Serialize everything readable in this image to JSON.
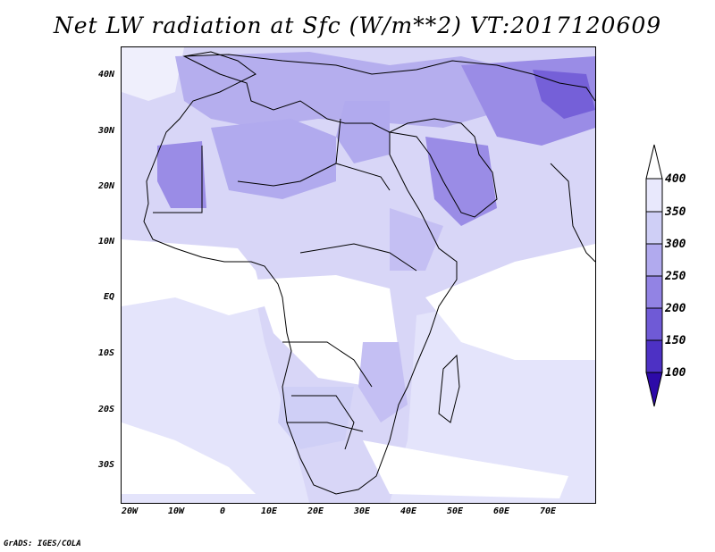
{
  "title": "Net LW radiation at Sfc (W/m**2) VT:2017120609",
  "credit": "GrADS: IGES/COLA",
  "lat_labels": [
    "40N",
    "30N",
    "20N",
    "10N",
    "EQ",
    "10S",
    "20S",
    "30S"
  ],
  "lon_labels": [
    "20W",
    "10W",
    "0",
    "10E",
    "20E",
    "30E",
    "40E",
    "50E",
    "60E",
    "70E"
  ],
  "colorbar": {
    "labels": [
      "400",
      "350",
      "300",
      "250",
      "200",
      "150",
      "100"
    ],
    "colors": [
      "#e8e8fc",
      "#cfcff6",
      "#b1aaee",
      "#9283e4",
      "#6f5ad6",
      "#4d31c4",
      "#2d0aa8"
    ]
  },
  "palette": {
    "bg_light": "#dcdcf8",
    "white": "#ffffff",
    "mid": "#b8b2ef",
    "strong": "#9a8ce6",
    "dark": "#7560d8"
  }
}
